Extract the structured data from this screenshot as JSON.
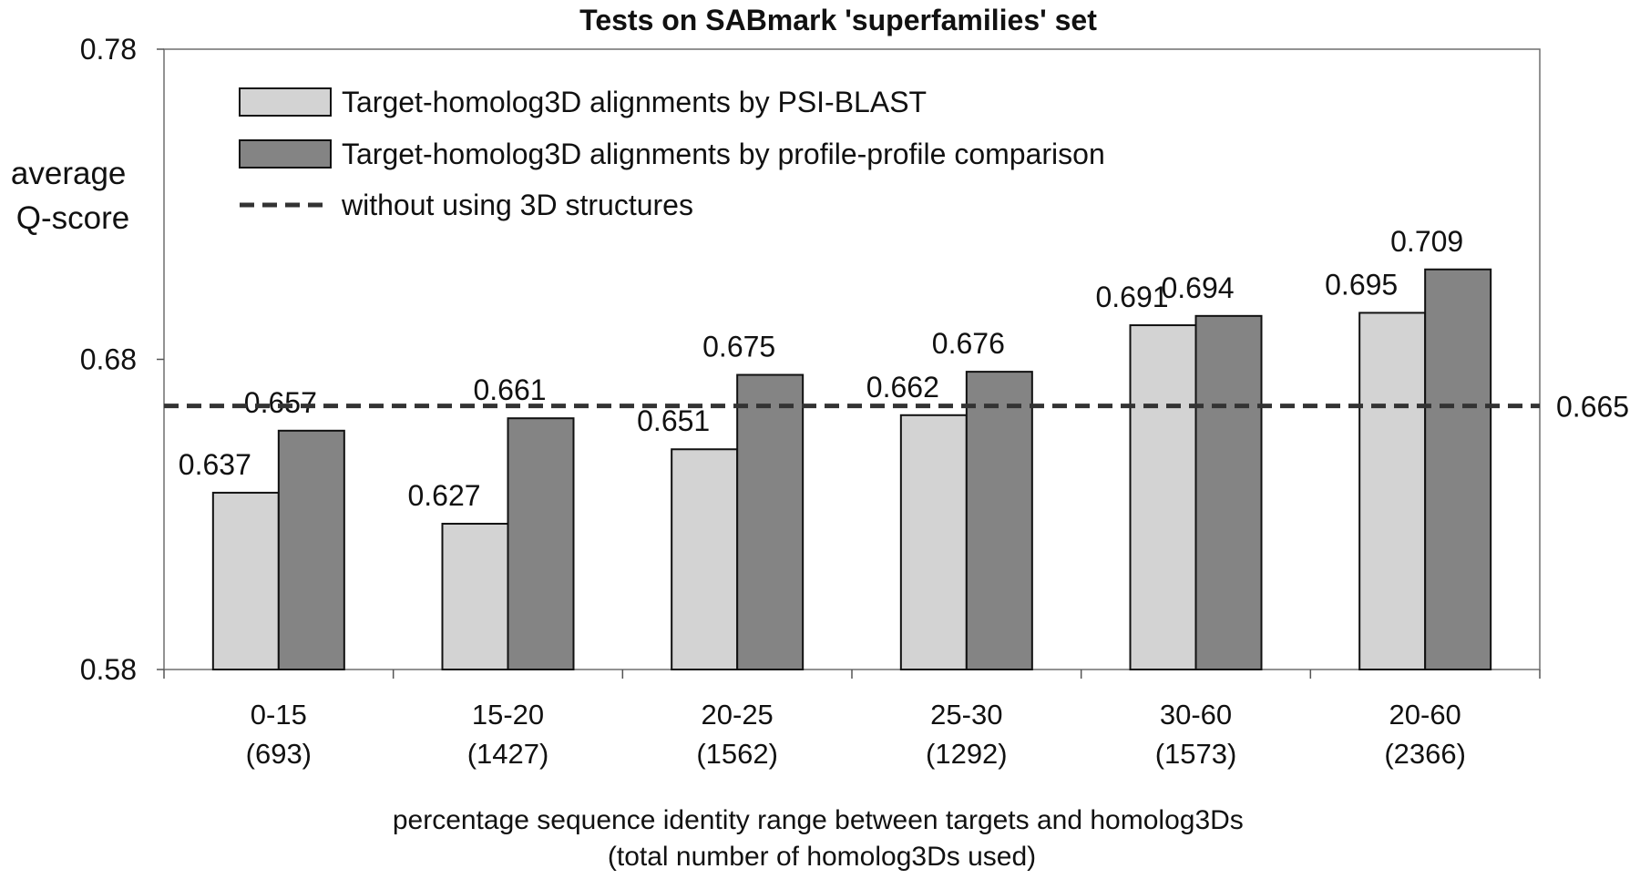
{
  "chart_data": {
    "type": "bar",
    "title": "Tests on SABmark 'superfamilies' set",
    "ylabel": [
      "average",
      "Q-score"
    ],
    "xlabel": [
      "percentage sequence identity range between targets and homolog3Ds",
      "(total number of homolog3Ds used)"
    ],
    "ylim": [
      0.58,
      0.78
    ],
    "yticks": [
      0.58,
      0.68,
      0.78
    ],
    "ytick_labels": [
      "0.58",
      "0.68",
      "0.78"
    ],
    "categories": [
      {
        "range": "0-15",
        "count": "(693)"
      },
      {
        "range": "15-20",
        "count": "(1427)"
      },
      {
        "range": "20-25",
        "count": "(1562)"
      },
      {
        "range": "25-30",
        "count": "(1292)"
      },
      {
        "range": "30-60",
        "count": "(1573)"
      },
      {
        "range": "20-60",
        "count": "(2366)"
      }
    ],
    "series": [
      {
        "name": "Target-homolog3D alignments by PSI-BLAST",
        "color": "#d3d3d3",
        "values": [
          0.637,
          0.627,
          0.651,
          0.662,
          0.691,
          0.695
        ],
        "labels": [
          "0.637",
          "0.627",
          "0.651",
          "0.662",
          "0.691",
          "0.695"
        ]
      },
      {
        "name": "Target-homolog3D alignments by profile-profile comparison",
        "color": "#848484",
        "values": [
          0.657,
          0.661,
          0.675,
          0.676,
          0.694,
          0.709
        ],
        "labels": [
          "0.657",
          "0.661",
          "0.675",
          "0.676",
          "0.694",
          "0.709"
        ]
      }
    ],
    "reference_line": {
      "name": "without using 3D structures",
      "value": 0.665,
      "label": "0.665",
      "color": "#333333"
    },
    "legend_position": "top-left",
    "grid": false
  }
}
